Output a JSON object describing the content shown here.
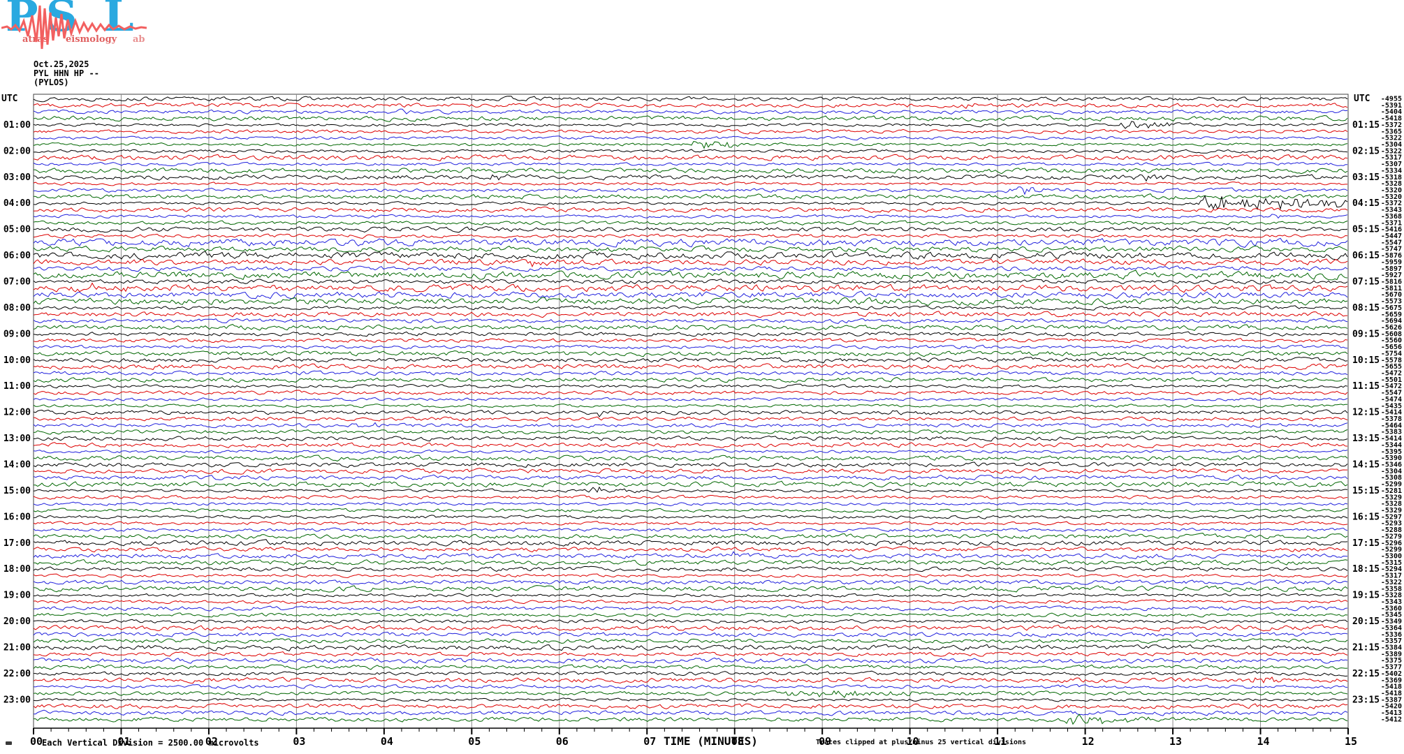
{
  "logo": {
    "p": "P",
    "atras": "atras",
    "s": "S",
    "eismology": "eismology",
    "l": "L",
    "ab": "ab"
  },
  "header": {
    "date": "Oct.25,2025",
    "station": "PYL HHN HP --",
    "location": "(PYLOS)"
  },
  "chart_data": {
    "type": "line",
    "subtype": "helicorder-seismogram",
    "title": "PYL HHN HP -- (PYLOS) Oct.25,2025",
    "utc_label": "UTC",
    "scale_note": "Each Vertical Division = 2500.00 microvolts",
    "clip_note": "Traces clipped at plus/minus 25 vertical divisions",
    "x_axis": {
      "label": "TIME (MINUTES)",
      "range": [
        0,
        15
      ],
      "minor_ticks_per_major": 4,
      "ticks": [
        "00",
        "01",
        "02",
        "03",
        "04",
        "05",
        "06",
        "07",
        "08",
        "09",
        "10",
        "11",
        "12",
        "13",
        "14",
        "15"
      ]
    },
    "left_time_labels": [
      "01:00",
      "02:00",
      "03:00",
      "04:00",
      "05:00",
      "06:00",
      "07:00",
      "08:00",
      "09:00",
      "10:00",
      "11:00",
      "12:00",
      "13:00",
      "14:00",
      "15:00",
      "16:00",
      "17:00",
      "18:00",
      "19:00",
      "20:00",
      "21:00",
      "22:00",
      "23:00"
    ],
    "right_time_labels": [
      "01:15",
      "02:15",
      "03:15",
      "04:15",
      "05:15",
      "06:15",
      "07:15",
      "08:15",
      "09:15",
      "10:15",
      "11:15",
      "12:15",
      "13:15",
      "14:15",
      "15:15",
      "16:15",
      "17:15",
      "18:15",
      "19:15",
      "20:15",
      "21:15",
      "22:15",
      "23:15"
    ],
    "rows": {
      "count": 96,
      "start_time": "00:00",
      "minutes_per_row": 15,
      "color_cycle": [
        "#000000",
        "#dd0000",
        "#2020dd",
        "#006600"
      ],
      "grid_color": "#8a8a8a",
      "border_color": "#404040",
      "noisy_row_range": [
        23,
        32
      ],
      "offset_values": [
        -4955,
        -5391,
        -5404,
        -5418,
        -5372,
        -5365,
        -5322,
        -5304,
        -5322,
        -5317,
        -5307,
        -5334,
        -5318,
        -5328,
        -5320,
        -5320,
        -5372,
        -5343,
        -5368,
        -5371,
        -5416,
        -5447,
        -5547,
        -5747,
        -5876,
        -5959,
        -5897,
        -5927,
        -5816,
        -5811,
        -5670,
        -5573,
        -5675,
        -5659,
        -5694,
        -5626,
        -5608,
        -5560,
        -5656,
        -5754,
        -5578,
        -5655,
        -5472,
        -5501,
        -5472,
        -5547,
        -5474,
        -5435,
        -5414,
        -5378,
        -5464,
        -5383,
        -5414,
        -5344,
        -5395,
        -5390,
        -5346,
        -5304,
        -5308,
        -5299,
        -5281,
        -5329,
        -5328,
        -5329,
        -5297,
        -5293,
        -5288,
        -5279,
        -5296,
        -5299,
        -5300,
        -5315,
        -5294,
        -5317,
        -5322,
        -5358,
        -5328,
        -5343,
        -5360,
        -5345,
        -5349,
        -5364,
        -5336,
        -5357,
        -5384,
        -5389,
        -5375,
        -5377,
        -5402,
        -5369,
        -5418,
        -5418,
        -5387,
        -5420,
        -5413,
        -5412
      ]
    },
    "events": [
      {
        "row": 2,
        "minute": 10.7,
        "amp": 4,
        "dur": 0.12,
        "time_utc": "00:25"
      },
      {
        "row": 3,
        "minute": 4.25,
        "amp": 3,
        "dur": 0.08,
        "time_utc": "00:34"
      },
      {
        "row": 5,
        "minute": 12.5,
        "amp": 6,
        "dur": 0.35,
        "time_utc": "01:12"
      },
      {
        "row": 8,
        "minute": 7.6,
        "amp": 6,
        "dur": 0.5,
        "time_utc": "01:52"
      },
      {
        "row": 13,
        "minute": 5.3,
        "amp": 3.5,
        "dur": 0.2,
        "time_utc": "03:05"
      },
      {
        "row": 13,
        "minute": 12.7,
        "amp": 4.5,
        "dur": 0.25,
        "time_utc": "03:12"
      },
      {
        "row": 15,
        "minute": 11.25,
        "amp": 7,
        "dur": 0.3,
        "time_utc": "03:41"
      },
      {
        "row": 17,
        "minute": 13.4,
        "amp": 11,
        "dur": 1.4,
        "time_utc": "04:13"
      },
      {
        "row": 19,
        "minute": 14.2,
        "amp": 3,
        "dur": 0.08,
        "time_utc": "04:44"
      },
      {
        "row": 25,
        "minute": 14.3,
        "amp": 3,
        "dur": 0.1,
        "time_utc": "06:14"
      },
      {
        "row": 26,
        "minute": 5.7,
        "amp": 4,
        "dur": 0.25,
        "time_utc": "06:20"
      },
      {
        "row": 30,
        "minute": 0.55,
        "amp": 4.5,
        "dur": 0.4,
        "time_utc": "07:15"
      },
      {
        "row": 49,
        "minute": 6.5,
        "amp": 4,
        "dur": 0.2,
        "time_utc": "12:06"
      },
      {
        "row": 49,
        "minute": 9.85,
        "amp": 4.5,
        "dur": 0.2,
        "time_utc": "12:09"
      },
      {
        "row": 51,
        "minute": 3.7,
        "amp": 3.5,
        "dur": 0.25,
        "time_utc": "12:33"
      },
      {
        "row": 61,
        "minute": 6.4,
        "amp": 5,
        "dur": 0.25,
        "time_utc": "15:06"
      },
      {
        "row": 71,
        "minute": 8.0,
        "amp": 2.5,
        "dur": 0.1,
        "time_utc": "17:38"
      },
      {
        "row": 90,
        "minute": 14.0,
        "amp": 5,
        "dur": 0.15,
        "time_utc": "22:29"
      },
      {
        "row": 92,
        "minute": 8.7,
        "amp": 4.5,
        "dur": 1.2,
        "time_utc": "22:53"
      },
      {
        "row": 96,
        "minute": 11.9,
        "amp": 9,
        "dur": 0.5,
        "time_utc": "23:57"
      }
    ]
  }
}
